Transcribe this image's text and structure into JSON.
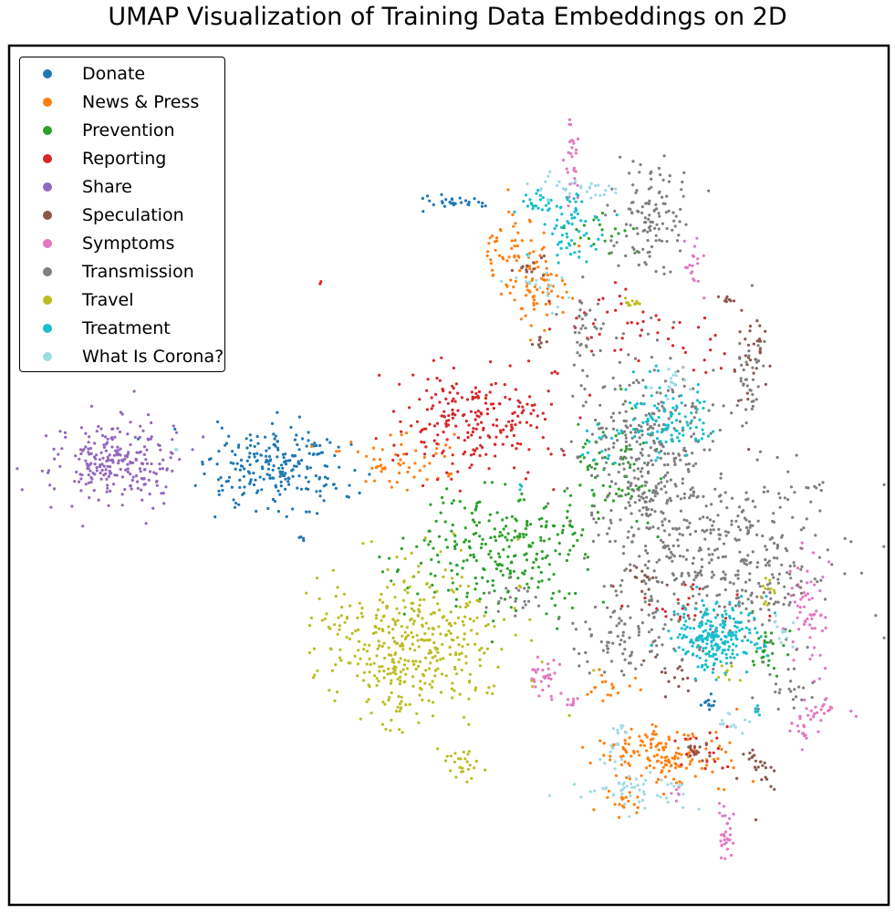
{
  "chart_data": {
    "type": "scatter",
    "title": "UMAP Visualization of Training Data Embeddings on 2D",
    "xlabel": "",
    "ylabel": "",
    "xlim": [
      0,
      100
    ],
    "ylim": [
      0,
      100
    ],
    "grid": false,
    "ticks": false,
    "legend_position": "top-left",
    "point_radius_note": "small dots",
    "series": [
      {
        "name": "Donate",
        "color": "#1f77b4",
        "clusters": [
          [
            30.5,
            50.5,
            5,
            3.2,
            230
          ],
          [
            51,
            81.8,
            2.5,
            0.4,
            28
          ],
          [
            79.5,
            23.5,
            0.6,
            0.6,
            12
          ],
          [
            33,
            42.5,
            0.3,
            0.3,
            4
          ]
        ]
      },
      {
        "name": "News & Press",
        "color": "#ff7f0e",
        "clusters": [
          [
            44,
            51.5,
            3.8,
            2,
            60
          ],
          [
            57.5,
            76.5,
            2.5,
            2.6,
            60
          ],
          [
            60.5,
            71,
            2.2,
            2.6,
            60
          ],
          [
            74,
            17.5,
            5,
            2.2,
            150
          ],
          [
            68.5,
            25,
            1.5,
            1.2,
            18
          ],
          [
            69.5,
            12,
            2,
            1,
            20
          ]
        ]
      },
      {
        "name": "Prevention",
        "color": "#2ca02c",
        "clusters": [
          [
            56,
            41,
            6,
            4.5,
            260
          ],
          [
            69,
            51.5,
            3,
            3.8,
            70
          ],
          [
            86.5,
            30,
            1.6,
            2.2,
            28
          ],
          [
            68,
            78.5,
            2.5,
            1.5,
            20
          ],
          [
            64,
            44,
            2,
            1.5,
            15
          ]
        ]
      },
      {
        "name": "Reporting",
        "color": "#d62728",
        "clusters": [
          [
            52.5,
            56.5,
            5.5,
            4,
            220
          ],
          [
            69,
            68.5,
            4,
            3,
            35
          ],
          [
            78,
            65,
            2.5,
            2,
            15
          ],
          [
            62,
            62,
            0.3,
            0.3,
            3
          ],
          [
            35.5,
            72.5,
            0.2,
            0.2,
            2
          ],
          [
            79.5,
            18,
            3,
            2,
            20
          ],
          [
            76,
            35,
            4,
            2,
            25
          ]
        ]
      },
      {
        "name": "Share",
        "color": "#9467bd",
        "clusters": [
          [
            11.8,
            51.5,
            4.5,
            3.5,
            240
          ],
          [
            18.5,
            52.2,
            0.3,
            0.3,
            2
          ]
        ]
      },
      {
        "name": "Speculation",
        "color": "#8c564b",
        "clusters": [
          [
            84.5,
            64.5,
            1.2,
            3.5,
            35
          ],
          [
            85.5,
            15.5,
            1.5,
            1.8,
            25
          ],
          [
            82,
            70.5,
            0.8,
            0.4,
            8
          ],
          [
            60.5,
            65.5,
            0.6,
            0.5,
            8
          ],
          [
            59,
            74,
            1.5,
            1,
            12
          ],
          [
            78,
            18,
            1.5,
            1,
            15
          ],
          [
            72.5,
            38,
            1.5,
            1,
            15
          ],
          [
            76,
            27.5,
            2,
            1.5,
            15
          ]
        ]
      },
      {
        "name": "Symptoms",
        "color": "#e377c2",
        "clusters": [
          [
            64.2,
            87.5,
            0.5,
            3.5,
            28
          ],
          [
            78.2,
            74.5,
            0.6,
            2,
            18
          ],
          [
            91,
            34,
            1.2,
            4,
            60
          ],
          [
            60.5,
            26.5,
            1.2,
            1.5,
            30
          ],
          [
            81.5,
            8.5,
            0.6,
            2,
            30
          ],
          [
            93.5,
            22.5,
            1.5,
            1,
            20
          ],
          [
            90.5,
            20.5,
            1,
            1.5,
            20
          ],
          [
            76,
            13,
            0.5,
            0.5,
            6
          ],
          [
            64,
            23.5,
            0.6,
            0.5,
            8
          ]
        ]
      },
      {
        "name": "Transmission",
        "color": "#7f7f7f",
        "clusters": [
          [
            73,
            80,
            2.5,
            4,
            120
          ],
          [
            73,
            52,
            5,
            7,
            350
          ],
          [
            81,
            40,
            8,
            6,
            400
          ],
          [
            84.5,
            62,
            1,
            4,
            35
          ],
          [
            70,
            30.5,
            4,
            3,
            80
          ],
          [
            88.5,
            24.5,
            2,
            1.5,
            20
          ],
          [
            91.5,
            48.5,
            0.6,
            0.2,
            5
          ],
          [
            58,
            35.5,
            2,
            1.5,
            20
          ],
          [
            65.5,
            67.5,
            2,
            3,
            35
          ]
        ]
      },
      {
        "name": "Travel",
        "color": "#bcbd22",
        "clusters": [
          [
            46,
            30,
            6.5,
            5.5,
            420
          ],
          [
            51.5,
            16.5,
            1.5,
            1.5,
            25
          ],
          [
            71,
            70.2,
            0.6,
            0.3,
            12
          ],
          [
            86,
            36.5,
            1.2,
            1.2,
            12
          ],
          [
            81,
            27,
            1,
            1,
            8
          ]
        ]
      },
      {
        "name": "Treatment",
        "color": "#17becf",
        "clusters": [
          [
            80.5,
            31,
            3,
            2.5,
            230
          ],
          [
            64.5,
            79,
            2.5,
            2.5,
            60
          ],
          [
            75,
            57,
            3,
            3,
            100
          ],
          [
            60.5,
            82,
            2,
            1,
            25
          ],
          [
            67,
            53.5,
            1.5,
            2,
            15
          ],
          [
            58.5,
            48.5,
            0.3,
            0.3,
            3
          ],
          [
            85,
            22.5,
            0.4,
            0.5,
            6
          ]
        ]
      },
      {
        "name": "What Is Corona?",
        "color": "#9edae5",
        "clusters": [
          [
            65,
            83.5,
            4,
            1,
            30
          ],
          [
            61,
            72.5,
            2,
            2,
            20
          ],
          [
            71.5,
            13,
            4,
            1.5,
            50
          ],
          [
            69,
            19,
            1,
            2,
            20
          ],
          [
            75.5,
            61,
            1,
            1.5,
            15
          ],
          [
            88,
            32,
            1,
            1,
            12
          ],
          [
            83,
            21,
            1.5,
            0.8,
            12
          ],
          [
            18.8,
            52.7,
            0.2,
            0.2,
            2
          ]
        ]
      }
    ]
  }
}
